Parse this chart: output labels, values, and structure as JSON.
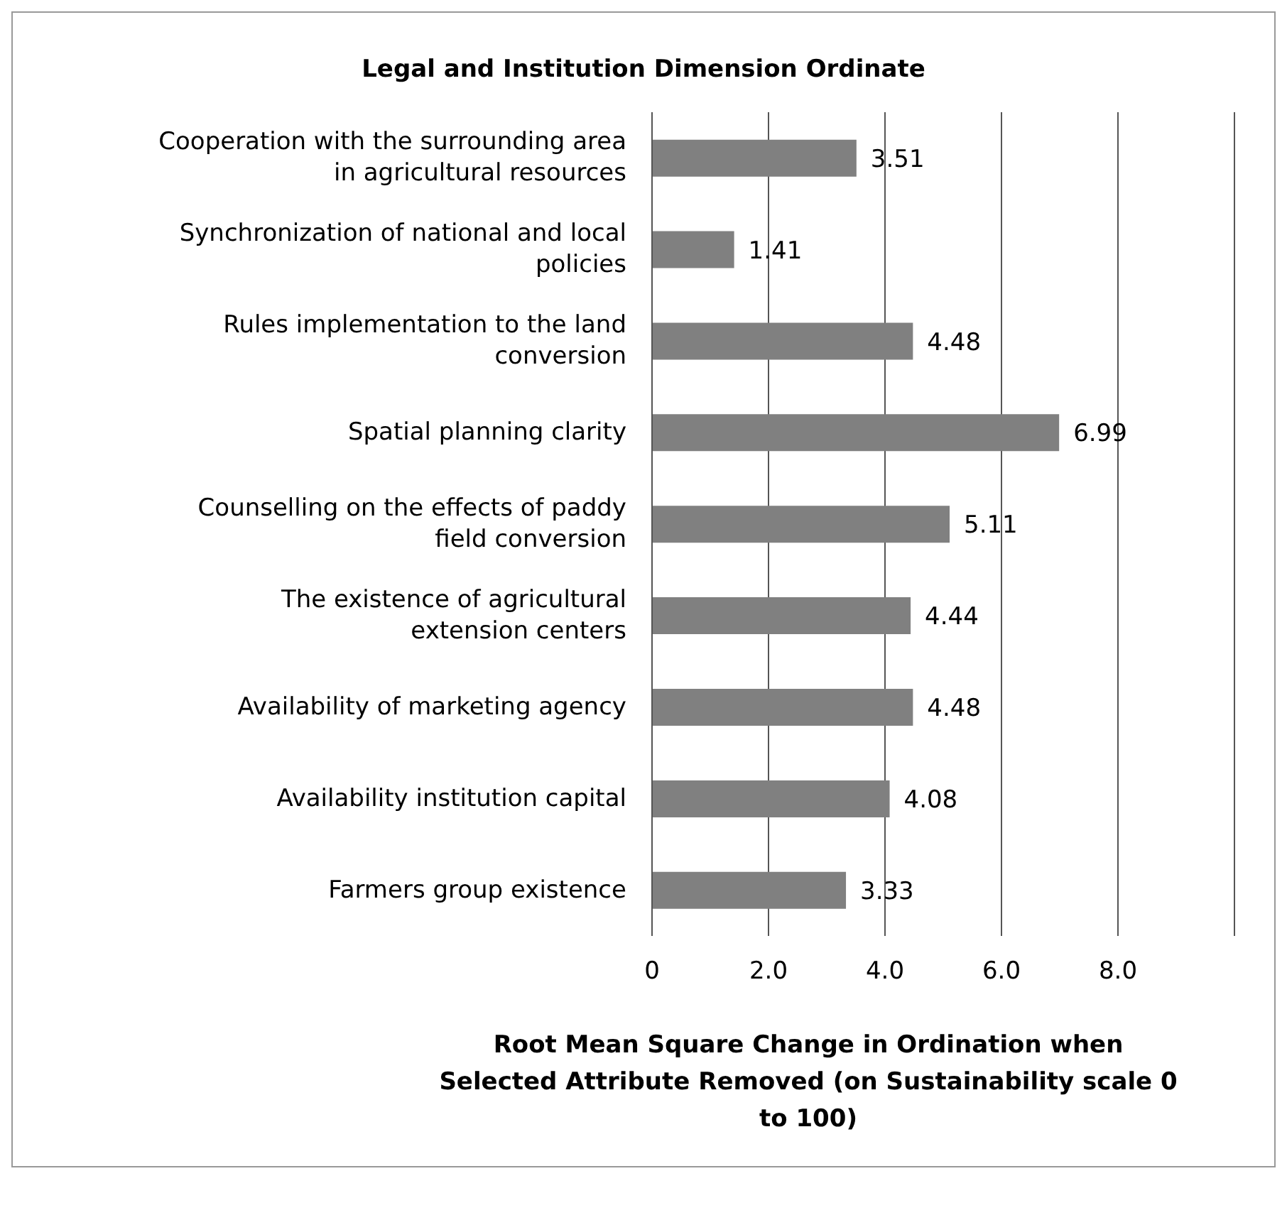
{
  "chart_data": {
    "type": "bar",
    "orientation": "horizontal",
    "title": "Legal and Institution Dimension Ordinate",
    "xlabel": "Root Mean Square Change in Ordination when Selected Attribute Removed (on Sustainability scale 0 to 100)",
    "categories": [
      "Cooperation with the surrounding area in agricultural resources",
      "Synchronization of national and local policies",
      "Rules implementation to the land conversion",
      "Spatial planning clarity",
      "Counselling on the effects of paddy field conversion",
      "The existence of agricultural extension centers",
      "Availability of marketing agency",
      "Availability institution capital",
      "Farmers group existence"
    ],
    "values": [
      3.51,
      1.41,
      4.48,
      6.99,
      5.11,
      4.44,
      4.48,
      4.08,
      3.33
    ],
    "color": "#808080",
    "xlim": [
      0,
      10
    ],
    "xticks": [
      0,
      {
        "value": 2,
        "label": "2.0"
      },
      {
        "value": 4,
        "label": "4.0"
      },
      {
        "value": 6,
        "label": "6.0"
      },
      {
        "value": 8,
        "label": "8.0"
      },
      {
        "value": 10,
        "label": null
      }
    ],
    "grid": "x",
    "data_labels": true
  }
}
